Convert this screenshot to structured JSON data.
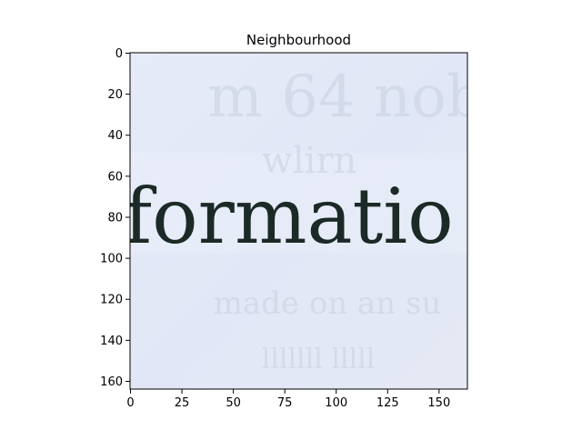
{
  "chart_data": {
    "type": "image",
    "title": "Neighbourhood",
    "image_text": "formatio",
    "xlim": [
      0,
      164
    ],
    "ylim": [
      164,
      0
    ],
    "xticks": [
      0,
      25,
      50,
      75,
      100,
      125,
      150
    ],
    "yticks": [
      0,
      20,
      40,
      60,
      80,
      100,
      120,
      140,
      160
    ],
    "colors": {
      "paper": "#e3e8f6",
      "ink": "#1b2a26",
      "bleed": "#c8d0de"
    }
  }
}
